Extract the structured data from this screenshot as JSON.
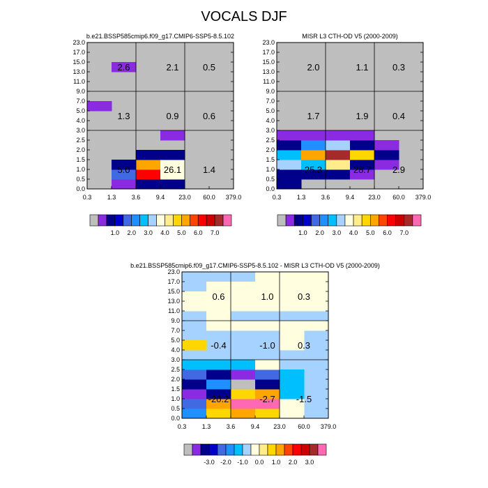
{
  "page": {
    "title": "VOCALS DJF"
  },
  "palettes": {
    "abs": [
      "#bebebe",
      "#8a2be2",
      "#00008b",
      "#0000cd",
      "#4169e1",
      "#1e90ff",
      "#00bfff",
      "#a6d2ff",
      "#ffffe0",
      "#ffec8b",
      "#ffd700",
      "#ffa500",
      "#ff4500",
      "#ff0000",
      "#cd0000",
      "#a52a2a",
      "#ff69b4"
    ],
    "diff": [
      "#bebebe",
      "#8a2be2",
      "#00008b",
      "#0000cd",
      "#4169e1",
      "#1e90ff",
      "#00bfff",
      "#a6d2ff",
      "#ffffe0",
      "#ffec8b",
      "#ffd700",
      "#ffa500",
      "#ff4500",
      "#ff0000",
      "#cd0000",
      "#a52a2a",
      "#ff69b4"
    ],
    "background": "#bebebe",
    "diff_background": "#a6d2ff"
  },
  "chart_data": [
    {
      "type": "heatmap",
      "title": "b.e21.BSSP585cmip6.f09_g17.CMIP6-SSP5-8.5.102",
      "x_ticks": [
        "0.3",
        "1.3",
        "3.6",
        "9.4",
        "23.0",
        "60.0",
        "379.0"
      ],
      "y_ticks": [
        "0.0",
        "0.5",
        "1.0",
        "1.5",
        "2.0",
        "2.5",
        "3.0",
        "4.0",
        "5.0",
        "7.0",
        "9.0",
        "11.0",
        "13.0",
        "15.0",
        "17.0",
        "23.0"
      ],
      "cells": [
        {
          "x": 1,
          "y": 0,
          "c": 1
        },
        {
          "x": 2,
          "y": 0,
          "c": 2
        },
        {
          "x": 3,
          "y": 0,
          "c": 2
        },
        {
          "x": 1,
          "y": 1,
          "c": 4
        },
        {
          "x": 2,
          "y": 1,
          "c": 13
        },
        {
          "x": 3,
          "y": 1,
          "c": 8
        },
        {
          "x": 1,
          "y": 2,
          "c": 2
        },
        {
          "x": 2,
          "y": 2,
          "c": 11
        },
        {
          "x": 3,
          "y": 2,
          "c": 8
        },
        {
          "x": 2,
          "y": 3,
          "c": 2
        },
        {
          "x": 3,
          "y": 3,
          "c": 2
        },
        {
          "x": 3,
          "y": 5,
          "c": 1
        },
        {
          "x": 0,
          "y": 8,
          "c": 1
        },
        {
          "x": 1,
          "y": 12,
          "c": 1
        }
      ],
      "group_labels": [
        {
          "col": 0,
          "row": 0,
          "text": "5.0"
        },
        {
          "col": 1,
          "row": 0,
          "text": "26.1"
        },
        {
          "col": 2,
          "row": 0,
          "text": "1.4"
        },
        {
          "col": 0,
          "row": 1,
          "text": "1.3"
        },
        {
          "col": 1,
          "row": 1,
          "text": "0.9"
        },
        {
          "col": 2,
          "row": 1,
          "text": "0.6"
        },
        {
          "col": 0,
          "row": 2,
          "text": "2.6"
        },
        {
          "col": 1,
          "row": 2,
          "text": "2.1"
        },
        {
          "col": 2,
          "row": 2,
          "text": "0.5"
        }
      ]
    },
    {
      "type": "heatmap",
      "title": "MISR L3 CTH-OD V5 (2000-2009)",
      "x_ticks": [
        "0.3",
        "1.3",
        "3.6",
        "9.4",
        "23.0",
        "60.0",
        "379.0"
      ],
      "y_ticks": [
        "0.0",
        "0.5",
        "1.0",
        "1.5",
        "2.0",
        "2.5",
        "3.0",
        "4.0",
        "5.0",
        "7.0",
        "9.0",
        "11.0",
        "13.0",
        "15.0",
        "17.0",
        "23.0"
      ],
      "cells": [
        {
          "x": 0,
          "y": 0,
          "c": 2
        },
        {
          "x": 0,
          "y": 1,
          "c": 2
        },
        {
          "x": 1,
          "y": 1,
          "c": 2
        },
        {
          "x": 2,
          "y": 1,
          "c": 2
        },
        {
          "x": 3,
          "y": 1,
          "c": 1
        },
        {
          "x": 0,
          "y": 2,
          "c": 7
        },
        {
          "x": 1,
          "y": 2,
          "c": 6
        },
        {
          "x": 2,
          "y": 2,
          "c": 9
        },
        {
          "x": 3,
          "y": 2,
          "c": 2
        },
        {
          "x": 4,
          "y": 2,
          "c": 1
        },
        {
          "x": 0,
          "y": 3,
          "c": 6
        },
        {
          "x": 1,
          "y": 3,
          "c": 11
        },
        {
          "x": 2,
          "y": 3,
          "c": 15
        },
        {
          "x": 3,
          "y": 3,
          "c": 10
        },
        {
          "x": 4,
          "y": 3,
          "c": 2
        },
        {
          "x": 0,
          "y": 4,
          "c": 2
        },
        {
          "x": 1,
          "y": 4,
          "c": 5
        },
        {
          "x": 2,
          "y": 4,
          "c": 7
        },
        {
          "x": 3,
          "y": 4,
          "c": 2
        },
        {
          "x": 4,
          "y": 4,
          "c": 1
        },
        {
          "x": 0,
          "y": 5,
          "c": 1
        },
        {
          "x": 1,
          "y": 5,
          "c": 1
        },
        {
          "x": 2,
          "y": 5,
          "c": 1
        },
        {
          "x": 3,
          "y": 5,
          "c": 1
        }
      ],
      "group_labels": [
        {
          "col": 0,
          "row": 0,
          "text": "25.3"
        },
        {
          "col": 1,
          "row": 0,
          "text": "28.7"
        },
        {
          "col": 2,
          "row": 0,
          "text": "2.9"
        },
        {
          "col": 0,
          "row": 1,
          "text": "1.7"
        },
        {
          "col": 1,
          "row": 1,
          "text": "1.9"
        },
        {
          "col": 2,
          "row": 1,
          "text": "0.4"
        },
        {
          "col": 0,
          "row": 2,
          "text": "2.0"
        },
        {
          "col": 1,
          "row": 2,
          "text": "1.1"
        },
        {
          "col": 2,
          "row": 2,
          "text": "0.3"
        }
      ]
    },
    {
      "type": "heatmap",
      "title": "b.e21.BSSP585cmip6.f09_g17.CMIP6-SSP5-8.5.102 - MISR L3 CTH-OD V5 (2000-2009)",
      "x_ticks": [
        "0.3",
        "1.3",
        "3.6",
        "9.4",
        "23.0",
        "60.0",
        "379.0"
      ],
      "y_ticks": [
        "0.0",
        "0.5",
        "1.0",
        "1.5",
        "2.0",
        "2.5",
        "3.0",
        "4.0",
        "5.0",
        "7.0",
        "9.0",
        "11.0",
        "13.0",
        "15.0",
        "17.0",
        "23.0"
      ],
      "cells": [
        {
          "x": 0,
          "y": 0,
          "c": 5
        },
        {
          "x": 1,
          "y": 0,
          "c": 10
        },
        {
          "x": 2,
          "y": 0,
          "c": 11
        },
        {
          "x": 3,
          "y": 0,
          "c": 10
        },
        {
          "x": 4,
          "y": 0,
          "c": 8
        },
        {
          "x": 0,
          "y": 1,
          "c": 4
        },
        {
          "x": 1,
          "y": 1,
          "c": 11
        },
        {
          "x": 2,
          "y": 1,
          "c": 16
        },
        {
          "x": 3,
          "y": 1,
          "c": 16
        },
        {
          "x": 4,
          "y": 1,
          "c": 8
        },
        {
          "x": 0,
          "y": 2,
          "c": 1
        },
        {
          "x": 1,
          "y": 2,
          "c": 2
        },
        {
          "x": 2,
          "y": 2,
          "c": 10
        },
        {
          "x": 3,
          "y": 2,
          "c": 11
        },
        {
          "x": 4,
          "y": 2,
          "c": 6
        },
        {
          "x": 0,
          "y": 3,
          "c": 2
        },
        {
          "x": 1,
          "y": 3,
          "c": 5
        },
        {
          "x": 2,
          "y": 3,
          "c": 0
        },
        {
          "x": 3,
          "y": 3,
          "c": 2
        },
        {
          "x": 4,
          "y": 3,
          "c": 6
        },
        {
          "x": 0,
          "y": 4,
          "c": 4
        },
        {
          "x": 1,
          "y": 4,
          "c": 2
        },
        {
          "x": 2,
          "y": 4,
          "c": 1
        },
        {
          "x": 3,
          "y": 4,
          "c": 4
        },
        {
          "x": 4,
          "y": 4,
          "c": 6
        },
        {
          "x": 0,
          "y": 5,
          "c": 6
        },
        {
          "x": 1,
          "y": 5,
          "c": 6
        },
        {
          "x": 2,
          "y": 5,
          "c": 6
        },
        {
          "x": 3,
          "y": 5,
          "c": 8
        },
        {
          "x": 0,
          "y": 7,
          "c": 10
        },
        {
          "x": 4,
          "y": 7,
          "c": 8
        },
        {
          "x": 4,
          "y": 8,
          "c": 8
        },
        {
          "x": 1,
          "y": 9,
          "c": 8
        },
        {
          "x": 2,
          "y": 9,
          "c": 8
        },
        {
          "x": 3,
          "y": 9,
          "c": 8
        },
        {
          "x": 4,
          "y": 9,
          "c": 8
        },
        {
          "x": 5,
          "y": 9,
          "c": 8
        },
        {
          "x": 1,
          "y": 10,
          "c": 8
        },
        {
          "x": 0,
          "y": 11,
          "c": 8
        },
        {
          "x": 1,
          "y": 11,
          "c": 8
        },
        {
          "x": 2,
          "y": 11,
          "c": 8
        },
        {
          "x": 3,
          "y": 11,
          "c": 8
        },
        {
          "x": 4,
          "y": 11,
          "c": 8
        },
        {
          "x": 5,
          "y": 11,
          "c": 8
        },
        {
          "x": 0,
          "y": 12,
          "c": 8
        },
        {
          "x": 1,
          "y": 12,
          "c": 8
        },
        {
          "x": 2,
          "y": 12,
          "c": 8
        },
        {
          "x": 3,
          "y": 12,
          "c": 8
        },
        {
          "x": 4,
          "y": 12,
          "c": 8
        },
        {
          "x": 5,
          "y": 12,
          "c": 8
        },
        {
          "x": 1,
          "y": 13,
          "c": 8
        },
        {
          "x": 2,
          "y": 13,
          "c": 8
        },
        {
          "x": 3,
          "y": 13,
          "c": 8
        },
        {
          "x": 4,
          "y": 13,
          "c": 8
        },
        {
          "x": 5,
          "y": 13,
          "c": 8
        },
        {
          "x": 3,
          "y": 14,
          "c": 8
        },
        {
          "x": 4,
          "y": 14,
          "c": 8
        },
        {
          "x": 5,
          "y": 14,
          "c": 8
        }
      ],
      "group_labels": [
        {
          "col": 0,
          "row": 0,
          "text": "-20.2"
        },
        {
          "col": 1,
          "row": 0,
          "text": "-2.7"
        },
        {
          "col": 2,
          "row": 0,
          "text": "-1.5"
        },
        {
          "col": 0,
          "row": 1,
          "text": "-0.4"
        },
        {
          "col": 1,
          "row": 1,
          "text": "-1.0"
        },
        {
          "col": 2,
          "row": 1,
          "text": "0.3"
        },
        {
          "col": 0,
          "row": 2,
          "text": "0.6"
        },
        {
          "col": 1,
          "row": 2,
          "text": "1.0"
        },
        {
          "col": 2,
          "row": 2,
          "text": "0.3"
        }
      ]
    }
  ],
  "colorbars": [
    {
      "labels": [
        "1.0",
        "2.0",
        "3.0",
        "4.0",
        "5.0",
        "6.0",
        "7.0"
      ]
    },
    {
      "labels": [
        "1.0",
        "2.0",
        "3.0",
        "4.0",
        "5.0",
        "6.0",
        "7.0"
      ]
    },
    {
      "labels": [
        "-3.0",
        "-2.0",
        "-1.0",
        "0.0",
        "1.0",
        "2.0",
        "3.0"
      ]
    }
  ]
}
